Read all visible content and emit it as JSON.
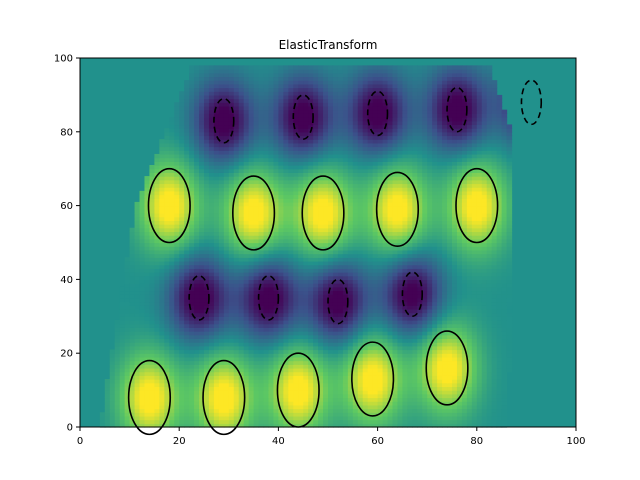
{
  "chart_data": {
    "type": "heatmap",
    "title": "ElasticTransform",
    "xlabel": "",
    "ylabel": "",
    "xlim": [
      0,
      100
    ],
    "ylim": [
      0,
      100
    ],
    "xticks": [
      0,
      20,
      40,
      60,
      80,
      100
    ],
    "yticks": [
      0,
      20,
      40,
      60,
      80,
      100
    ],
    "colormap": "viridis",
    "background_value_color": "#21918c",
    "contour_color": "#000000",
    "field": {
      "description_of_pattern": "warped sinusoidal field with lobes",
      "positive_lobes": [
        {
          "x": 14,
          "y": 8
        },
        {
          "x": 29,
          "y": 8
        },
        {
          "x": 44,
          "y": 10
        },
        {
          "x": 59,
          "y": 13
        },
        {
          "x": 74,
          "y": 16
        },
        {
          "x": 18,
          "y": 60
        },
        {
          "x": 35,
          "y": 58
        },
        {
          "x": 49,
          "y": 58
        },
        {
          "x": 64,
          "y": 59
        },
        {
          "x": 80,
          "y": 60
        }
      ],
      "negative_lobes": [
        {
          "x": 24,
          "y": 35
        },
        {
          "x": 38,
          "y": 35
        },
        {
          "x": 52,
          "y": 34
        },
        {
          "x": 67,
          "y": 36
        },
        {
          "x": 29,
          "y": 83
        },
        {
          "x": 45,
          "y": 84
        },
        {
          "x": 60,
          "y": 85
        },
        {
          "x": 76,
          "y": 86
        },
        {
          "x": 91,
          "y": 88
        }
      ]
    },
    "data_region_y_bounds": [
      0,
      98
    ]
  },
  "colors": {
    "axes": "#000000",
    "background": "#ffffff"
  }
}
